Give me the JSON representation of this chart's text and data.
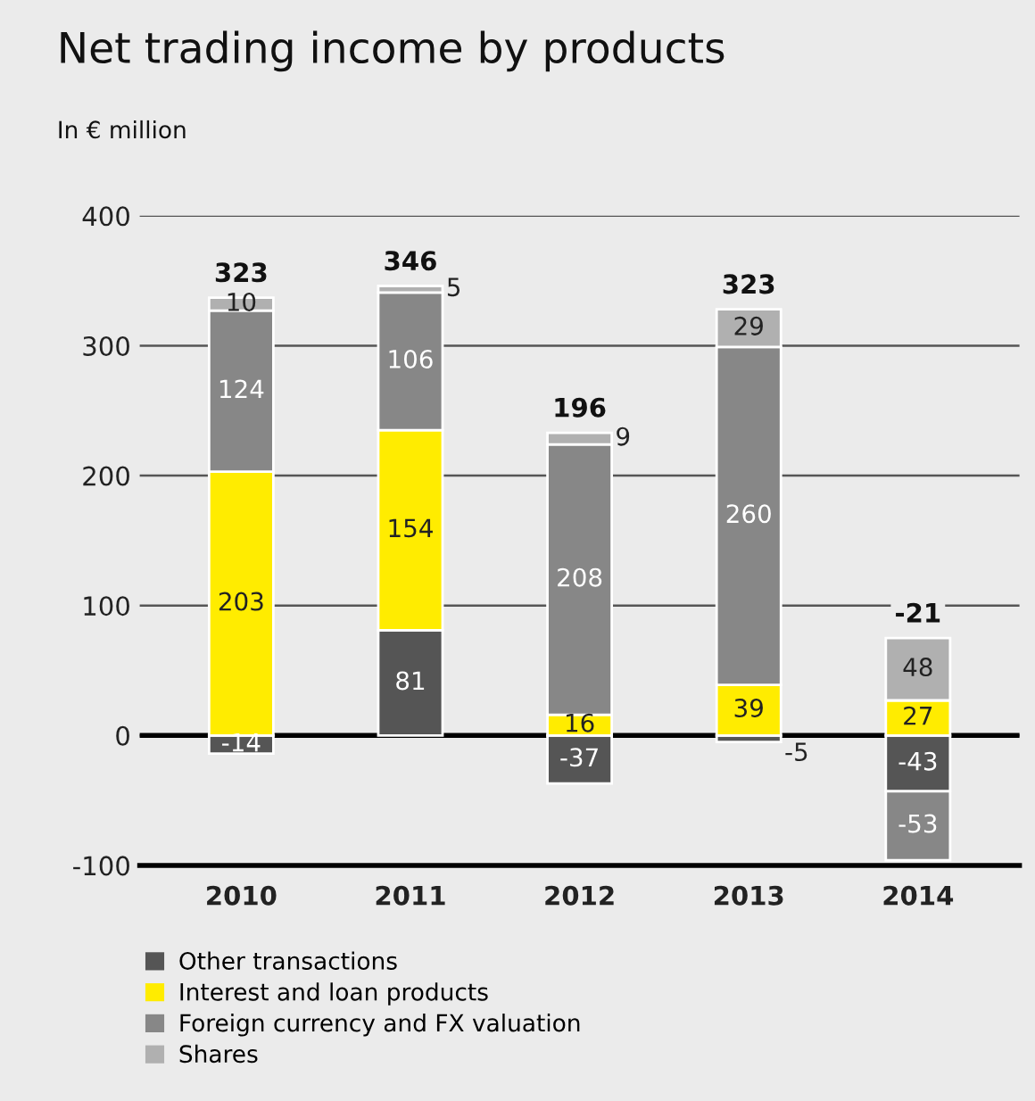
{
  "chart_data": {
    "type": "bar",
    "title": "Net trading income by products",
    "subtitle": "In € million",
    "categories": [
      "2010",
      "2011",
      "2012",
      "2013",
      "2014"
    ],
    "series": [
      {
        "name": "Other transactions",
        "color": "#555555",
        "values": [
          -14,
          81,
          -37,
          -5,
          -43
        ]
      },
      {
        "name": "Interest and loan products",
        "color": "#ffec00",
        "values": [
          203,
          154,
          16,
          39,
          27
        ]
      },
      {
        "name": "Foreign currency and FX valuation",
        "color": "#878787",
        "values": [
          124,
          106,
          208,
          260,
          -53
        ]
      },
      {
        "name": "Shares",
        "color": "#b0b0b0",
        "values": [
          10,
          5,
          9,
          29,
          48
        ]
      }
    ],
    "stacked": true,
    "data_labels": true,
    "totals": [
      "323",
      "346",
      "196",
      "323",
      "-21"
    ],
    "ylim": [
      -100,
      400
    ],
    "yticks": [
      -100,
      0,
      100,
      200,
      300,
      400
    ],
    "grid": "y",
    "legend": "bottom"
  }
}
